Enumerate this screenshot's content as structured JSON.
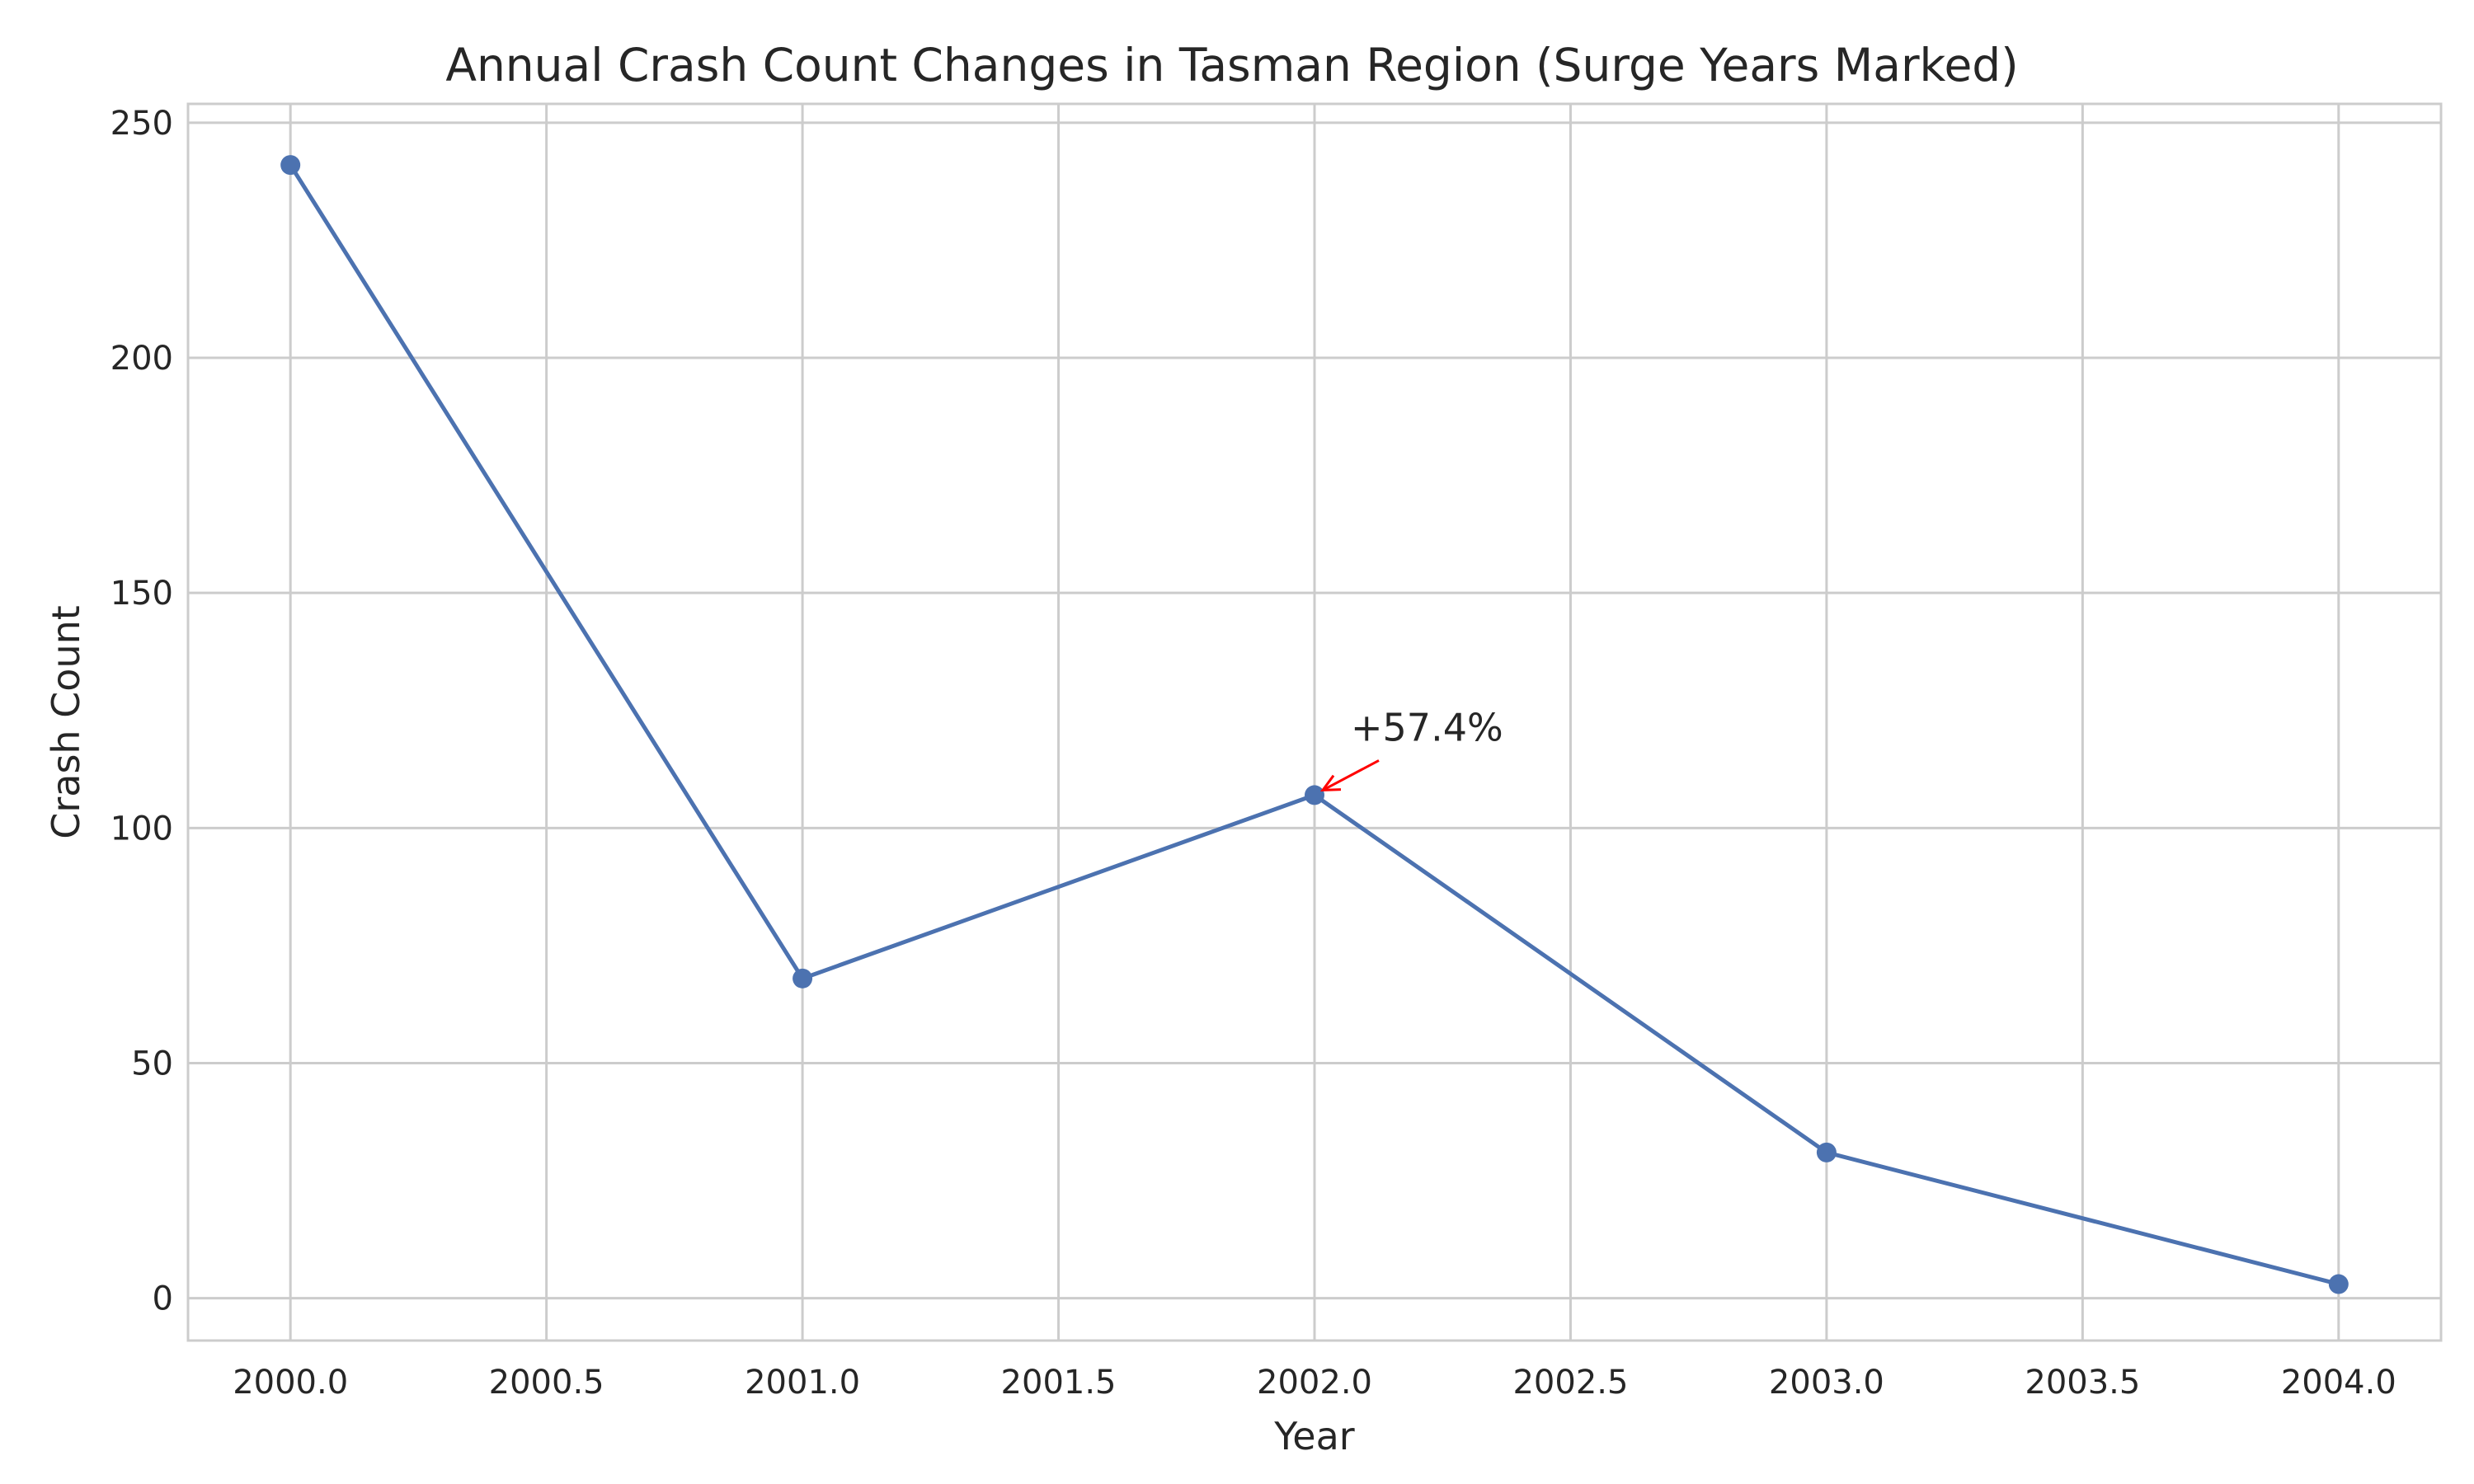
{
  "chart_data": {
    "type": "line",
    "title": "Annual Crash Count Changes in Tasman Region (Surge Years Marked)",
    "xlabel": "Year",
    "ylabel": "Crash Count",
    "xlim": [
      1999.8,
      2004.2
    ],
    "ylim": [
      -9,
      254
    ],
    "x_ticks": [
      2000.0,
      2000.5,
      2001.0,
      2001.5,
      2002.0,
      2002.5,
      2003.0,
      2003.5,
      2004.0
    ],
    "x_tick_labels": [
      "2000.0",
      "2000.5",
      "2001.0",
      "2001.5",
      "2002.0",
      "2002.5",
      "2003.0",
      "2003.5",
      "2004.0"
    ],
    "y_ticks": [
      0,
      50,
      100,
      150,
      200,
      250
    ],
    "y_tick_labels": [
      "0",
      "50",
      "100",
      "150",
      "200",
      "250"
    ],
    "grid": true,
    "legend": "none",
    "series": [
      {
        "color": "#4c72b0",
        "x": [
          2000,
          2001,
          2002,
          2003,
          2004
        ],
        "y": [
          241,
          68,
          107,
          31,
          3
        ]
      }
    ],
    "annotations": [
      {
        "text": "+57.4%",
        "x": 2002,
        "y": 107,
        "color": "#ff0000"
      }
    ]
  }
}
